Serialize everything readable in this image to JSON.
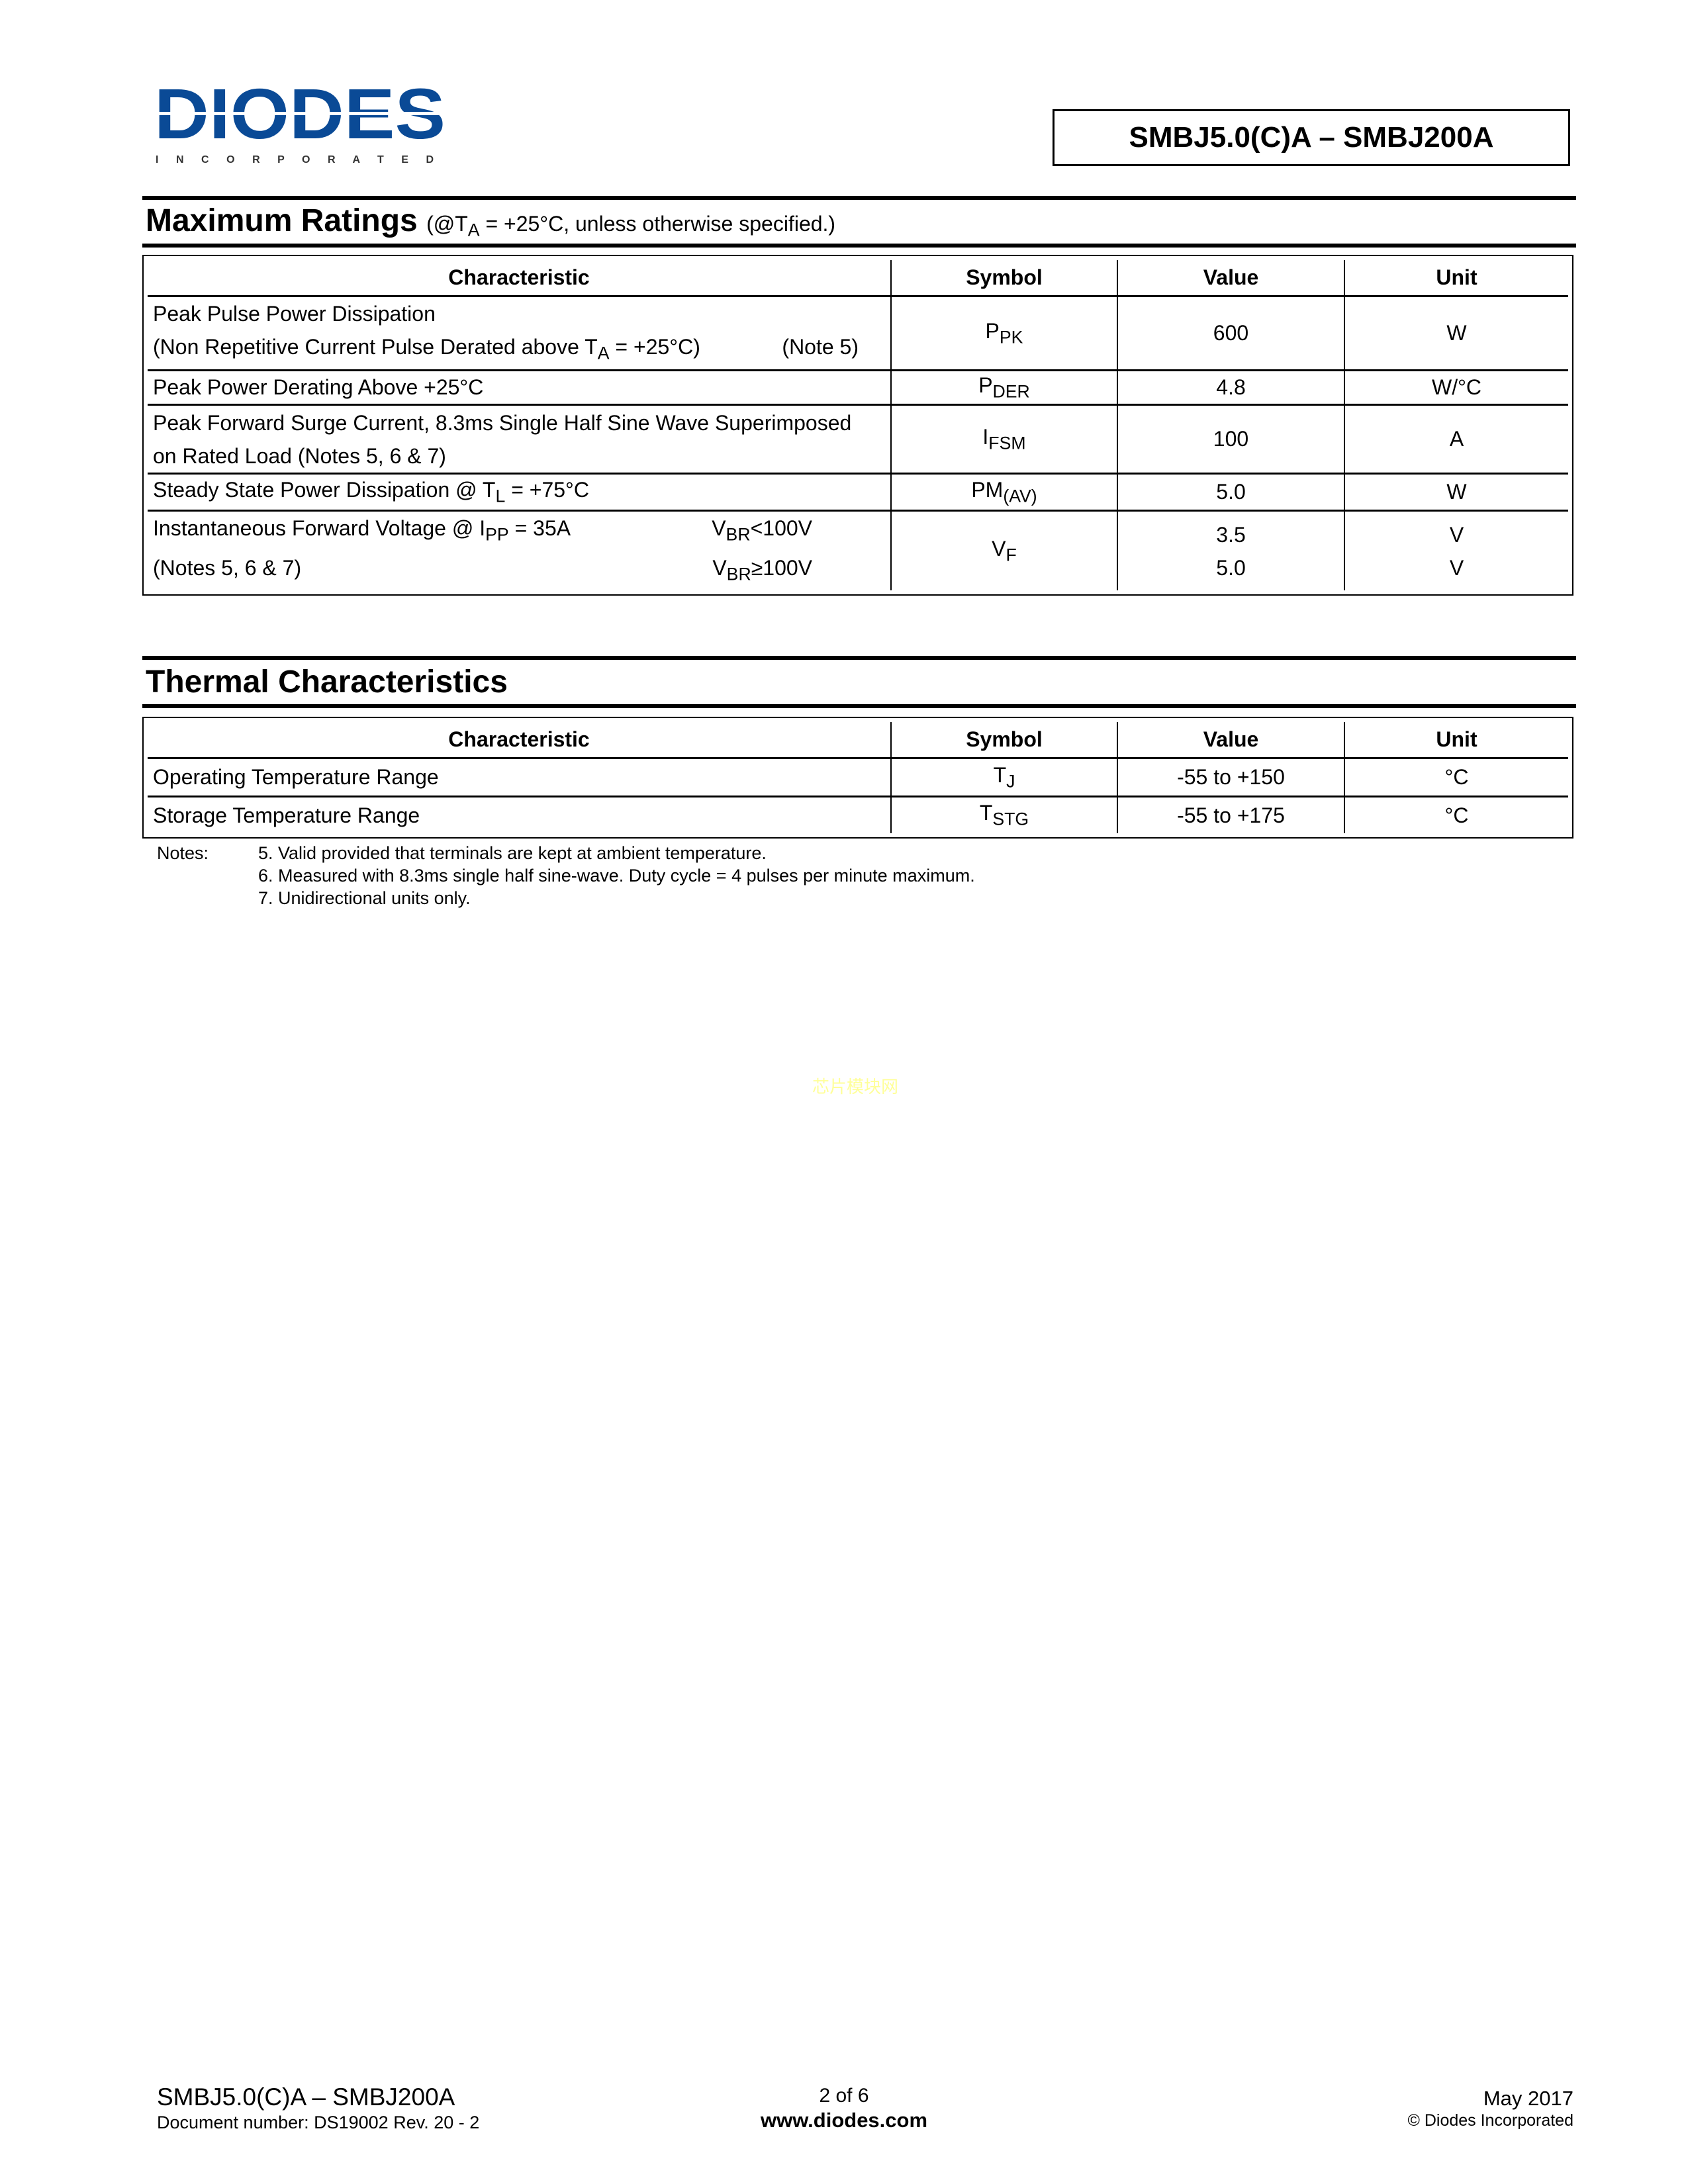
{
  "header": {
    "logo_text": "DIODES",
    "logo_sub": "INCORPORATED",
    "logo_color": "#0a4a96",
    "part_title": "SMBJ5.0(C)A – SMBJ200A"
  },
  "max_ratings": {
    "title": "Maximum Ratings",
    "condition_pre": "(@T",
    "condition_sub": "A",
    "condition_post": " = +25°C, unless otherwise specified.)",
    "columns": [
      "Characteristic",
      "Symbol",
      "Value",
      "Unit"
    ],
    "rows": [
      {
        "line1": "Peak Pulse Power Dissipation",
        "line2_pre": "(Non Repetitive Current Pulse Derated above T",
        "line2_sub": "A",
        "line2_post": " = +25°C)",
        "note": "(Note 5)",
        "sym": "P",
        "sym_sub": "PK",
        "value": "600",
        "unit": "W"
      },
      {
        "line1": "Peak Power Derating Above +25°C",
        "sym": "P",
        "sym_sub": "DER",
        "value": "4.8",
        "unit": "W/°C"
      },
      {
        "line1": "Peak Forward Surge Current, 8.3ms Single Half Sine Wave Superimposed",
        "line2": "on Rated Load  (Notes 5, 6 & 7)",
        "sym": "I",
        "sym_sub": "FSM",
        "value": "100",
        "unit": "A"
      },
      {
        "line1_pre": "Steady State Power Dissipation @ T",
        "line1_sub": "L",
        "line1_post": " = +75°C",
        "sym": "PM",
        "sym_sub": "(AV)",
        "value": "5.0",
        "unit": "W"
      },
      {
        "line1_pre": "Instantaneous Forward Voltage @ I",
        "line1_sub": "PP",
        "line1_post": " = 35A",
        "cond1_pre": "V",
        "cond1_sub": "BR",
        "cond1_post": "<100V",
        "line2": "(Notes 5, 6 & 7)",
        "cond2_pre": "V",
        "cond2_sub": "BR",
        "cond2_post": "≥100V",
        "sym": "V",
        "sym_sub": "F",
        "value1": "3.5",
        "value2": "5.0",
        "unit1": "V",
        "unit2": "V"
      }
    ]
  },
  "thermal": {
    "title": "Thermal Characteristics",
    "columns": [
      "Characteristic",
      "Symbol",
      "Value",
      "Unit"
    ],
    "rows": [
      {
        "char": "Operating Temperature Range",
        "sym": "T",
        "sym_sub": "J",
        "value": "-55 to +150",
        "unit": "°C"
      },
      {
        "char": "Storage Temperature Range",
        "sym": "T",
        "sym_sub": "STG",
        "value": "-55 to +175",
        "unit": "°C"
      }
    ]
  },
  "notes": {
    "label": "Notes:",
    "items": [
      "5. Valid provided that terminals are kept at ambient temperature.",
      "6. Measured with 8.3ms single half sine-wave. Duty cycle = 4 pulses per minute maximum.",
      "7. Unidirectional units only."
    ]
  },
  "watermark": "芯片模块网",
  "footer": {
    "part": "SMBJ5.0(C)A – SMBJ200A",
    "doc_number": "Document number: DS19002 Rev. 20 - 2",
    "page": "2 of 6",
    "website": "www.diodes.com",
    "date": "May 2017",
    "copyright": "© Diodes Incorporated"
  }
}
